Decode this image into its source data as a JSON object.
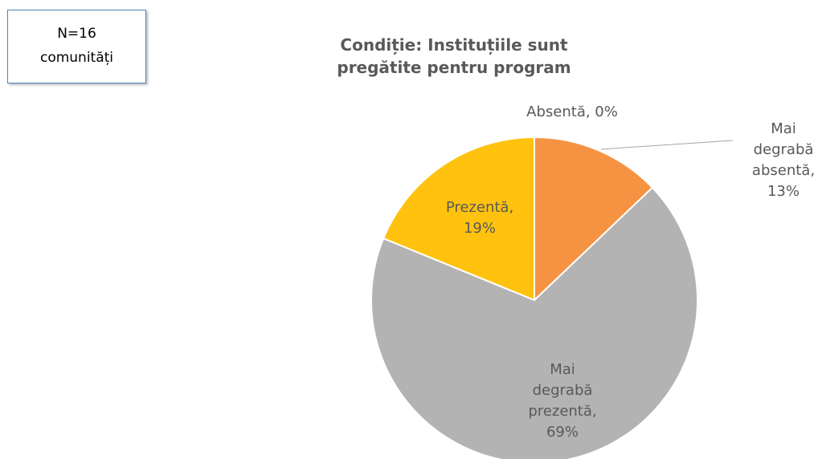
{
  "chart_data": {
    "type": "pie",
    "title": "Condiție: Instituțiile sunt pregătite pentru program",
    "annotations": [
      "N=16",
      "comunități"
    ],
    "categories": [
      "Absentă",
      "Mai degrabă absentă",
      "Mai degrabă prezentă",
      "Prezentă"
    ],
    "values": [
      0,
      13,
      69,
      19
    ],
    "value_labels": [
      "Absentă, 0%",
      "Mai degrabă absentă, 13%",
      "Mai degrabă prezentă, 69%",
      "Prezentă, 19%"
    ],
    "colors": [
      "#4472c4",
      "#f59342",
      "#b3b3b3",
      "#ffc20e"
    ]
  }
}
